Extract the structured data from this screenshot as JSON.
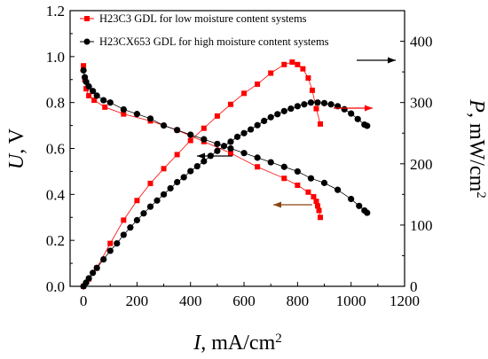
{
  "chart_data": {
    "type": "scatter",
    "xlabel": {
      "var": "I",
      "unit": ", mA/cm",
      "sup": "2"
    },
    "ylabel_left": {
      "var": "U",
      "unit": ", V"
    },
    "ylabel_right": {
      "var": "P",
      "unit": ", mW/cm",
      "sup": "2"
    },
    "xlim": [
      -50,
      1200
    ],
    "ylim_left": [
      0,
      1.2
    ],
    "ylim_right": [
      0,
      450
    ],
    "x_ticks": [
      0,
      200,
      400,
      600,
      800,
      1000,
      1200
    ],
    "x_tick_labels": [
      "0",
      "200",
      "400",
      "600",
      "800",
      "1000",
      "1200"
    ],
    "y_left_ticks": [
      0,
      0.2,
      0.4,
      0.6,
      0.8,
      1.0,
      1.2
    ],
    "y_left_tick_labels": [
      "0.0",
      "0.2",
      "0.4",
      "0.6",
      "0.8",
      "1.0",
      "1.2"
    ],
    "y_right_ticks": [
      0,
      100,
      200,
      300,
      400
    ],
    "y_right_tick_labels": [
      "0",
      "100",
      "200",
      "300",
      "400"
    ],
    "legend_position": "top-left",
    "grid": false,
    "series": [
      {
        "name": "H23C3 GDL for low moisture content systems",
        "marker": "square",
        "color": "#ff0000",
        "axis": "left",
        "kind": "voltage",
        "x": [
          0,
          5,
          10,
          20,
          40,
          80,
          150,
          250,
          350,
          450,
          550,
          650,
          750,
          800,
          840,
          860,
          870,
          875,
          880,
          885
        ],
        "y": [
          0.96,
          0.9,
          0.86,
          0.83,
          0.81,
          0.78,
          0.75,
          0.72,
          0.68,
          0.63,
          0.58,
          0.52,
          0.47,
          0.44,
          0.41,
          0.39,
          0.37,
          0.35,
          0.33,
          0.3
        ]
      },
      {
        "name": "H23C3 GDL for low moisture content systems",
        "marker": "square",
        "color": "#ff0000",
        "axis": "right",
        "kind": "power",
        "x": [
          0,
          20,
          50,
          100,
          150,
          200,
          250,
          300,
          350,
          400,
          450,
          500,
          550,
          600,
          650,
          700,
          750,
          780,
          800,
          820,
          840,
          855,
          870,
          885
        ],
        "y": [
          0,
          12,
          30,
          70,
          108,
          140,
          168,
          192,
          215,
          238,
          258,
          278,
          297,
          315,
          330,
          348,
          362,
          366,
          362,
          355,
          340,
          320,
          290,
          265
        ]
      },
      {
        "name": "H23CX653 GDL for high moisture content systems",
        "marker": "circle",
        "color": "#000000",
        "axis": "left",
        "kind": "voltage",
        "x": [
          0,
          5,
          10,
          20,
          35,
          50,
          75,
          100,
          150,
          200,
          250,
          300,
          350,
          400,
          450,
          500,
          550,
          600,
          650,
          700,
          750,
          800,
          850,
          900,
          950,
          1000,
          1030,
          1050,
          1060
        ],
        "y": [
          0.94,
          0.91,
          0.89,
          0.87,
          0.85,
          0.83,
          0.81,
          0.8,
          0.77,
          0.75,
          0.73,
          0.7,
          0.68,
          0.66,
          0.64,
          0.62,
          0.6,
          0.58,
          0.56,
          0.54,
          0.52,
          0.5,
          0.47,
          0.45,
          0.42,
          0.38,
          0.35,
          0.33,
          0.32
        ]
      },
      {
        "name": "H23CX653 GDL for high moisture content systems",
        "marker": "circle",
        "color": "#000000",
        "axis": "right",
        "kind": "power",
        "x": [
          0,
          10,
          20,
          35,
          50,
          75,
          100,
          125,
          150,
          175,
          200,
          225,
          250,
          275,
          300,
          325,
          350,
          375,
          400,
          425,
          450,
          475,
          500,
          525,
          550,
          575,
          600,
          625,
          650,
          675,
          700,
          725,
          750,
          775,
          800,
          825,
          850,
          875,
          900,
          925,
          950,
          975,
          1000,
          1025,
          1050,
          1060
        ],
        "y": [
          0,
          6,
          13,
          22,
          30,
          44,
          58,
          70,
          84,
          96,
          108,
          119,
          130,
          140,
          150,
          160,
          170,
          178,
          188,
          196,
          204,
          213,
          221,
          229,
          236,
          244,
          250,
          256,
          263,
          270,
          276,
          281,
          286,
          290,
          294,
          297,
          300,
          300,
          299,
          297,
          294,
          289,
          282,
          273,
          264,
          262
        ]
      }
    ],
    "arrows": [
      {
        "target": "left",
        "color": "#000000"
      },
      {
        "target": "right",
        "color": "#000000"
      },
      {
        "target": "right",
        "color": "#ff0000"
      },
      {
        "target": "left",
        "color": "#8b4513"
      }
    ]
  }
}
